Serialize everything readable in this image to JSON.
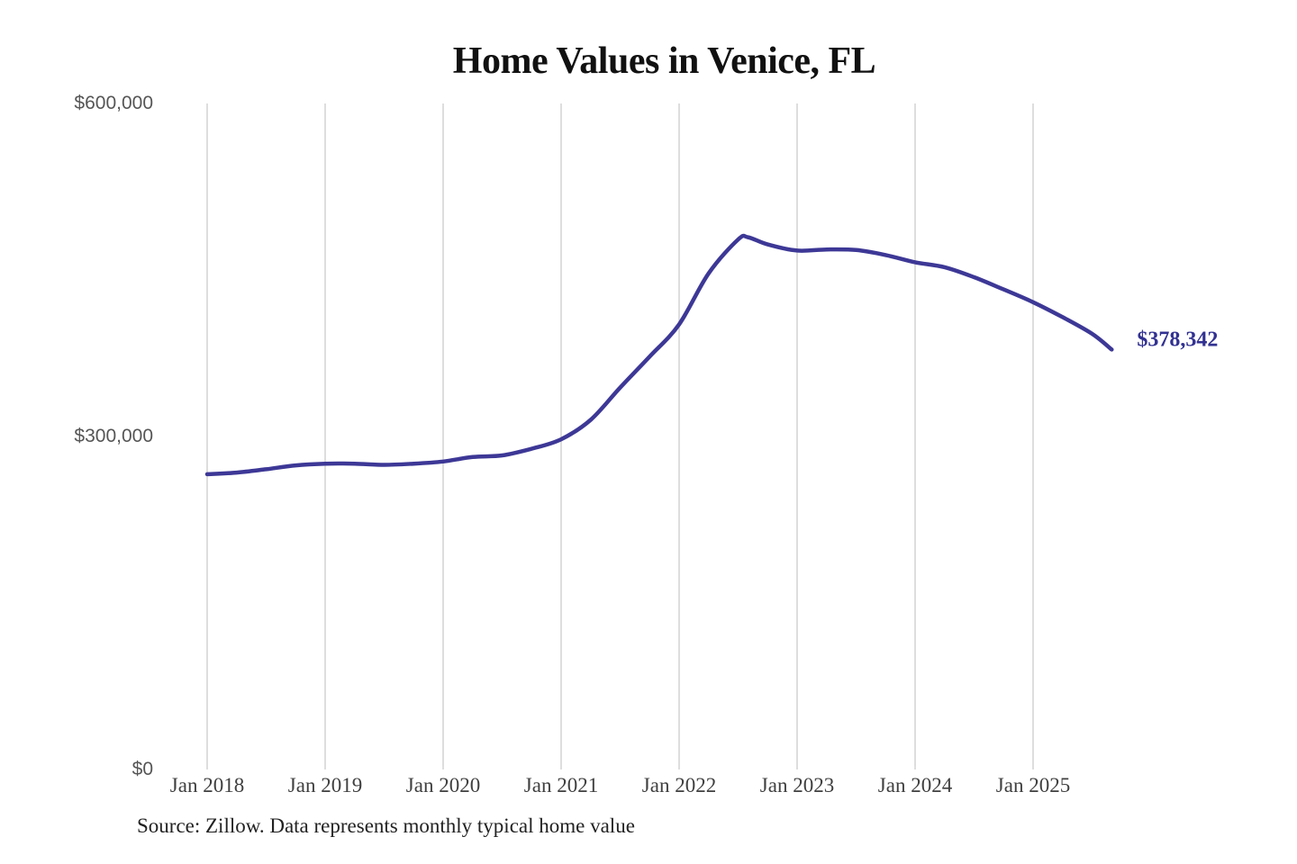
{
  "page": {
    "background": "#ffffff"
  },
  "source_note": "Source: Zillow. Data represents monthly typical home value",
  "colors": {
    "line": "#3d3896",
    "grid": "#cbcbcb",
    "annotation": "#323192",
    "title": "#111111",
    "x_labels": "#3f3f3f",
    "y_labels": "#565656",
    "source": "#222222",
    "background": "#ffffff"
  },
  "chart_data": {
    "type": "line",
    "title": "Home Values in Venice, FL",
    "xlabel": "",
    "ylabel": "",
    "ylim": [
      0,
      600000
    ],
    "grid": "vertical-only",
    "legend": "none",
    "x_ticks": [
      "Jan 2018",
      "Jan 2019",
      "Jan 2020",
      "Jan 2021",
      "Jan 2022",
      "Jan 2023",
      "Jan 2024",
      "Jan 2025"
    ],
    "y_ticks": [
      {
        "label": "$0",
        "value": 0
      },
      {
        "label": "$300,000",
        "value": 300000
      },
      {
        "label": "$600,000",
        "value": 600000
      }
    ],
    "series": [
      {
        "name": "Monthly typical home value",
        "points": [
          {
            "date": "2018-01",
            "value": 266000
          },
          {
            "date": "2018-04",
            "value": 267500
          },
          {
            "date": "2018-07",
            "value": 270500
          },
          {
            "date": "2018-10",
            "value": 274000
          },
          {
            "date": "2019-01",
            "value": 275500
          },
          {
            "date": "2019-04",
            "value": 275500
          },
          {
            "date": "2019-07",
            "value": 274500
          },
          {
            "date": "2019-10",
            "value": 275500
          },
          {
            "date": "2020-01",
            "value": 277500
          },
          {
            "date": "2020-04",
            "value": 281500
          },
          {
            "date": "2020-07",
            "value": 283000
          },
          {
            "date": "2020-10",
            "value": 289000
          },
          {
            "date": "2021-01",
            "value": 297500
          },
          {
            "date": "2021-04",
            "value": 315000
          },
          {
            "date": "2021-07",
            "value": 344000
          },
          {
            "date": "2021-10",
            "value": 372000
          },
          {
            "date": "2022-01",
            "value": 401000
          },
          {
            "date": "2022-04",
            "value": 447000
          },
          {
            "date": "2022-07",
            "value": 477500
          },
          {
            "date": "2022-08",
            "value": 479500
          },
          {
            "date": "2022-10",
            "value": 473000
          },
          {
            "date": "2023-01",
            "value": 467500
          },
          {
            "date": "2023-04",
            "value": 468500
          },
          {
            "date": "2023-07",
            "value": 468000
          },
          {
            "date": "2023-10",
            "value": 463500
          },
          {
            "date": "2024-01",
            "value": 457000
          },
          {
            "date": "2024-04",
            "value": 452500
          },
          {
            "date": "2024-07",
            "value": 443500
          },
          {
            "date": "2024-10",
            "value": 432500
          },
          {
            "date": "2025-01",
            "value": 421000
          },
          {
            "date": "2025-04",
            "value": 407500
          },
          {
            "date": "2025-07",
            "value": 392500
          },
          {
            "date": "2025-09",
            "value": 378342
          }
        ]
      }
    ],
    "annotation": {
      "text": "$378,342",
      "value": 378342,
      "date": "2025-09",
      "position": "line-end"
    }
  }
}
